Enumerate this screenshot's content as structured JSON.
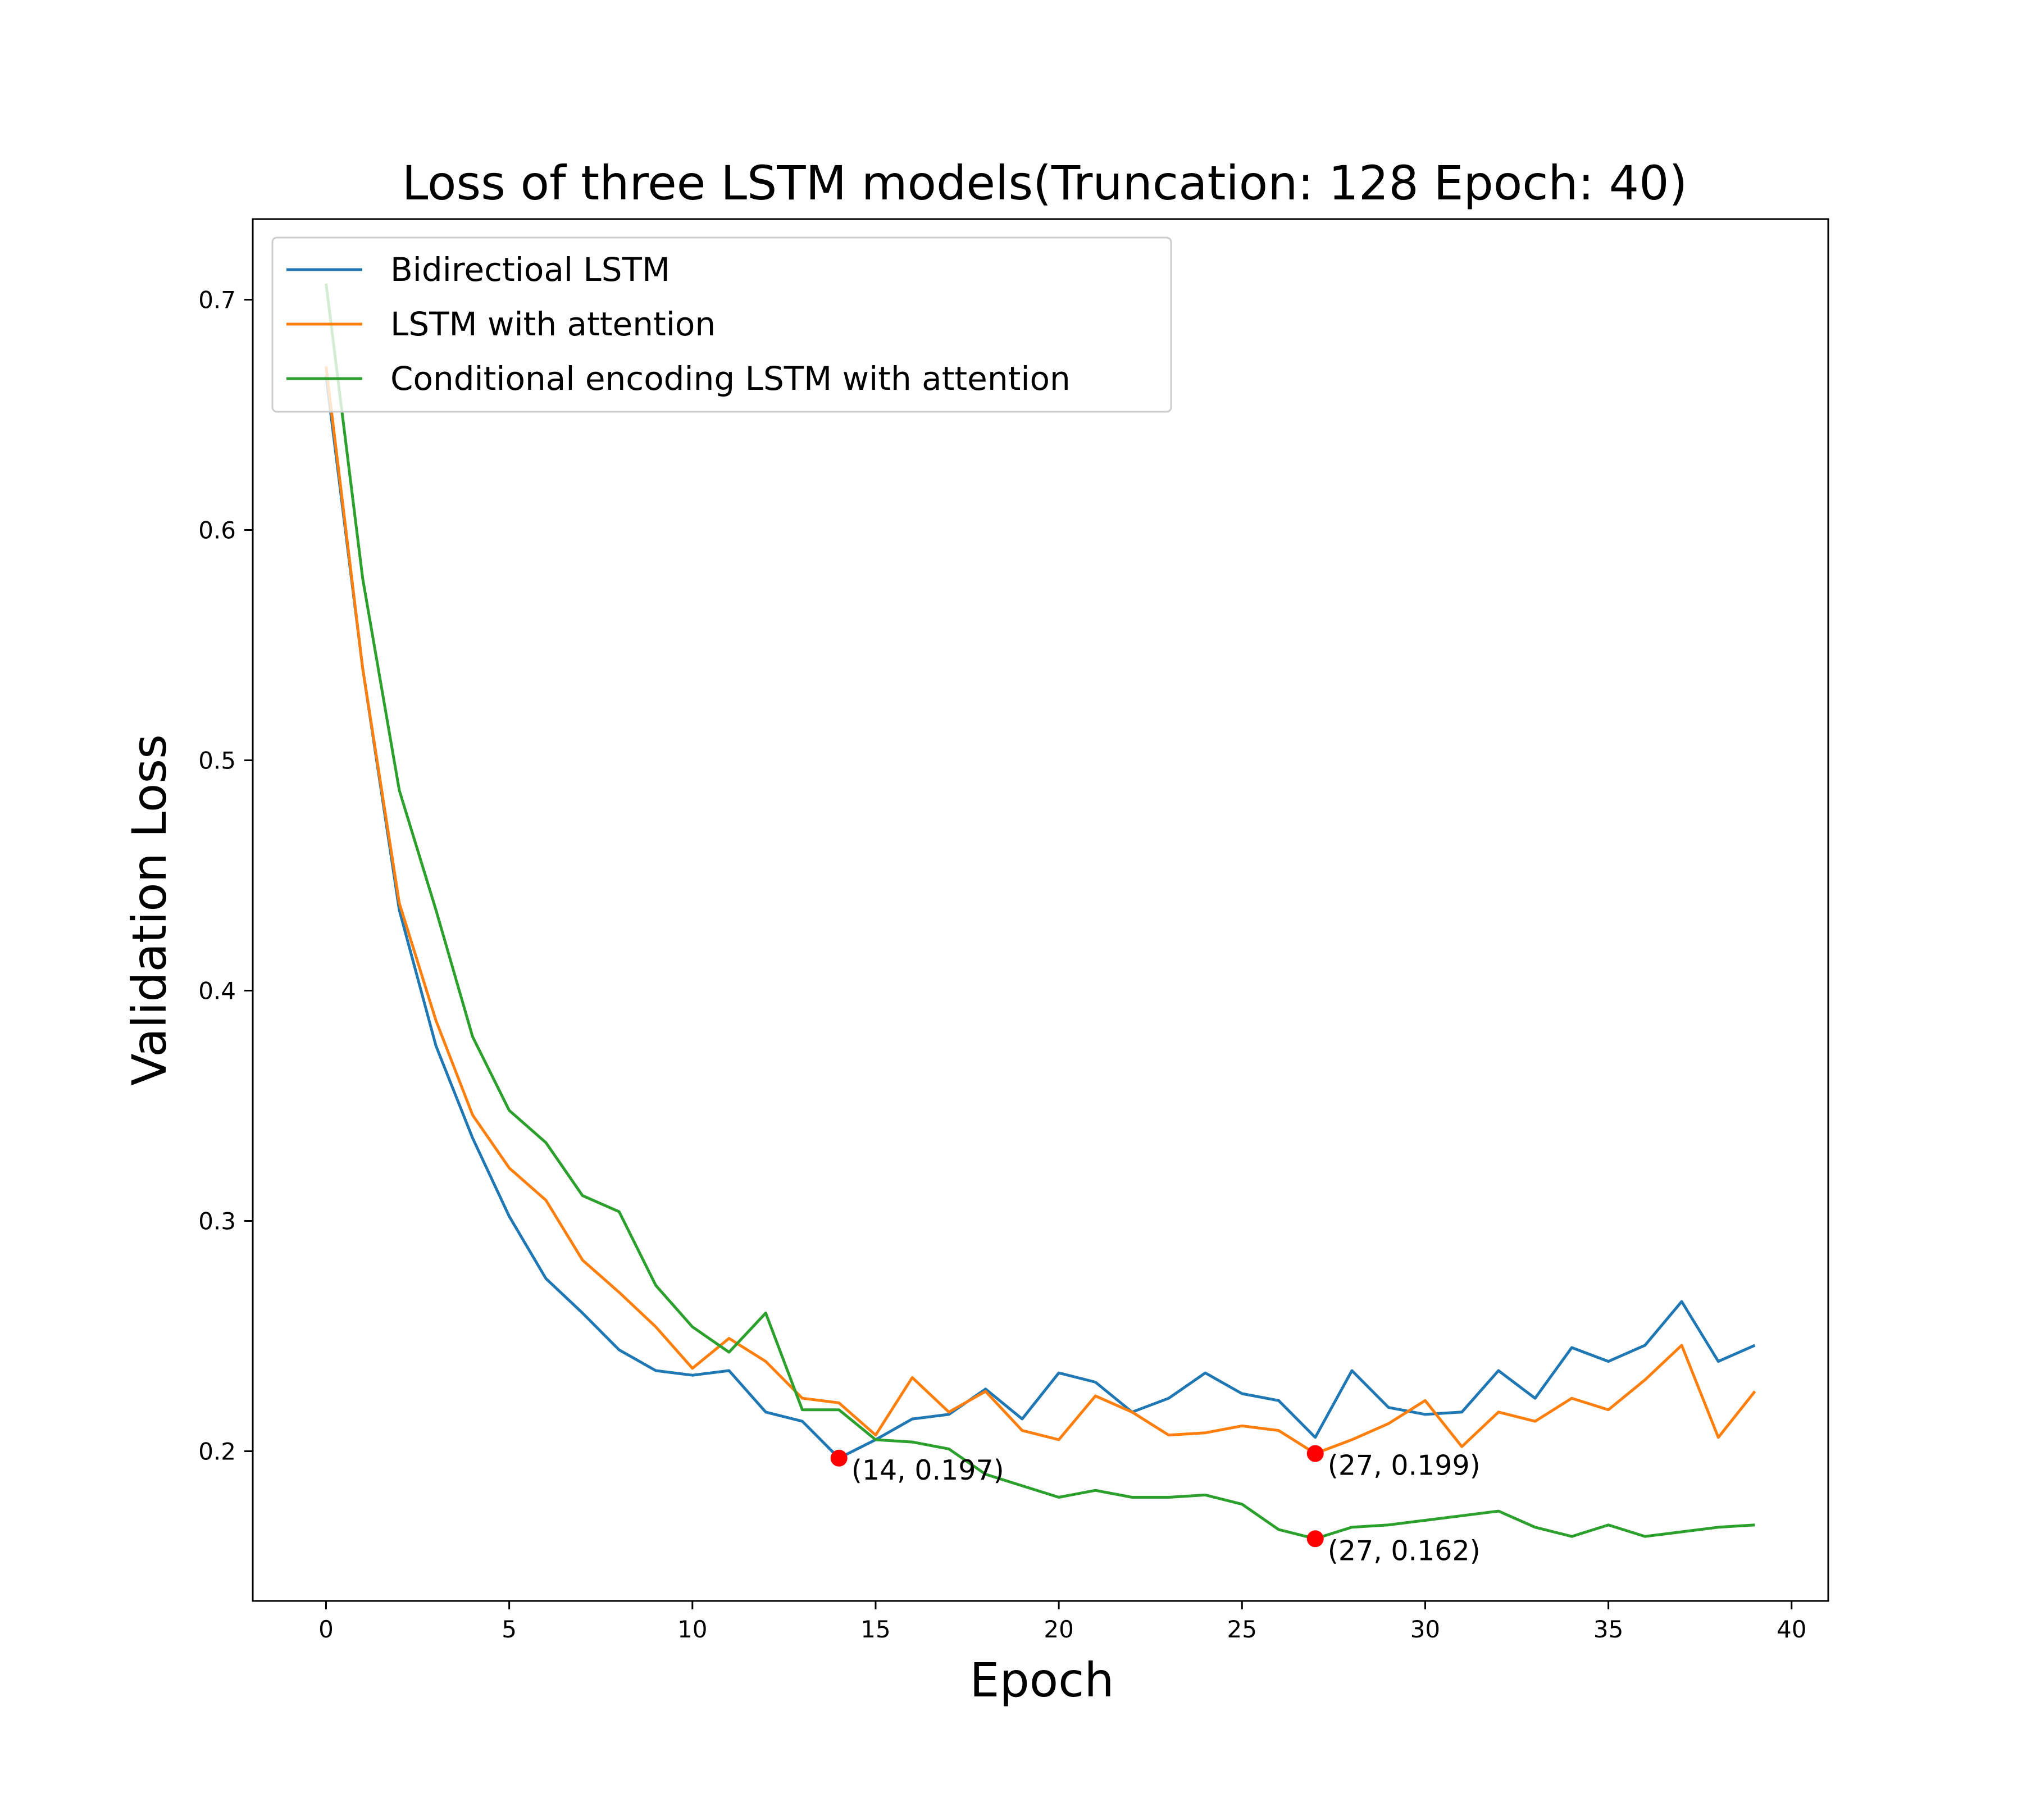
{
  "chart_data": {
    "type": "line",
    "title": "Loss of three LSTM models(Truncation: 128 Epoch: 40)",
    "xlabel": "Epoch",
    "ylabel": "Validation Loss",
    "xlim": [
      -2,
      41
    ],
    "ylim": [
      0.135,
      0.735
    ],
    "x_ticks": [
      0,
      5,
      10,
      15,
      20,
      25,
      30,
      35,
      40
    ],
    "y_ticks": [
      0.2,
      0.3,
      0.4,
      0.5,
      0.6,
      0.7
    ],
    "grid": false,
    "legend_position": "top-left",
    "x": [
      0,
      1,
      2,
      3,
      4,
      5,
      6,
      7,
      8,
      9,
      10,
      11,
      12,
      13,
      14,
      15,
      16,
      17,
      18,
      19,
      20,
      21,
      22,
      23,
      24,
      25,
      26,
      27,
      28,
      29,
      30,
      31,
      32,
      33,
      34,
      35,
      36,
      37,
      38,
      39
    ],
    "series": [
      {
        "name": "Bidirectioal LSTM",
        "color": "#1f77b4",
        "values": [
          0.667,
          0.54,
          0.435,
          0.376,
          0.336,
          0.302,
          0.275,
          0.26,
          0.244,
          0.235,
          0.233,
          0.235,
          0.217,
          0.213,
          0.197,
          0.205,
          0.214,
          0.216,
          0.227,
          0.214,
          0.234,
          0.23,
          0.217,
          0.223,
          0.234,
          0.225,
          0.222,
          0.206,
          0.235,
          0.219,
          0.216,
          0.217,
          0.235,
          0.223,
          0.245,
          0.239,
          0.246,
          0.265,
          0.239,
          0.246
        ]
      },
      {
        "name": "LSTM with attention",
        "color": "#ff7f0e",
        "values": [
          0.671,
          0.54,
          0.438,
          0.387,
          0.346,
          0.323,
          0.309,
          0.283,
          0.269,
          0.254,
          0.236,
          0.249,
          0.239,
          0.223,
          0.221,
          0.207,
          0.232,
          0.217,
          0.226,
          0.209,
          0.205,
          0.224,
          0.217,
          0.207,
          0.208,
          0.211,
          0.209,
          0.199,
          0.205,
          0.212,
          0.222,
          0.202,
          0.217,
          0.213,
          0.223,
          0.218,
          0.231,
          0.246,
          0.206,
          0.226
        ]
      },
      {
        "name": "Conditional encoding LSTM with attention",
        "color": "#2ca02c",
        "values": [
          0.707,
          0.579,
          0.487,
          0.435,
          0.38,
          0.348,
          0.334,
          0.311,
          0.304,
          0.272,
          0.254,
          0.243,
          0.26,
          0.218,
          0.218,
          0.205,
          0.204,
          0.201,
          0.19,
          0.185,
          0.18,
          0.183,
          0.18,
          0.18,
          0.181,
          0.177,
          0.166,
          0.162,
          0.167,
          0.168,
          0.17,
          0.172,
          0.174,
          0.167,
          0.163,
          0.168,
          0.163,
          0.165,
          0.167,
          0.168
        ]
      }
    ],
    "markers": [
      {
        "x": 14,
        "y": 0.197,
        "label": "(14, 0.197)",
        "color": "#ff0000"
      },
      {
        "x": 27,
        "y": 0.199,
        "label": "(27, 0.199)",
        "color": "#ff0000"
      },
      {
        "x": 27,
        "y": 0.162,
        "label": "(27, 0.162)",
        "color": "#ff0000"
      }
    ]
  }
}
